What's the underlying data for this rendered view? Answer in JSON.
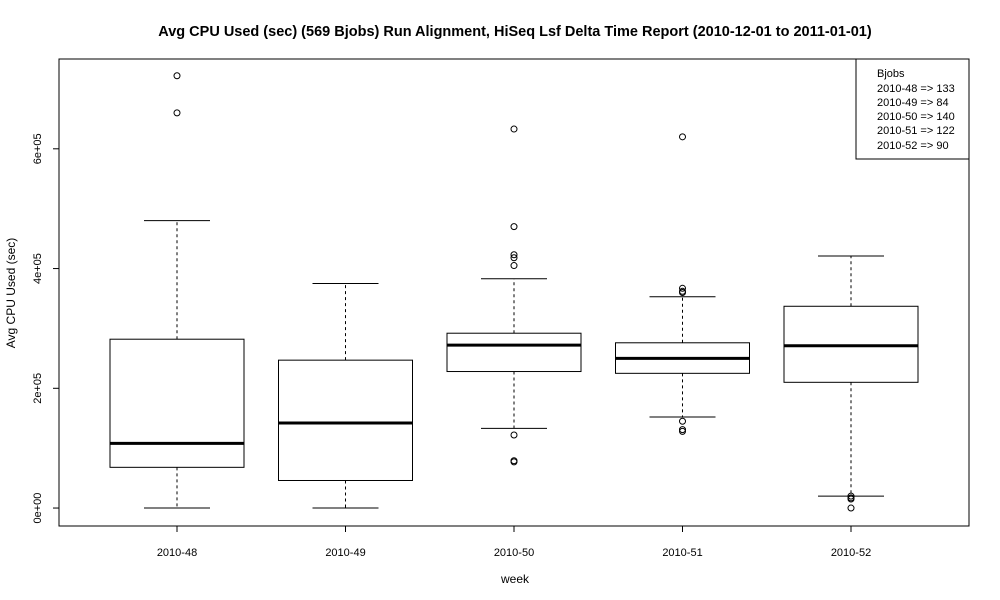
{
  "chart_data": {
    "type": "boxplot",
    "title": "Avg CPU Used (sec) (569 Bjobs) Run Alignment, HiSeq Lsf Delta Time Report (2010-12-01 to 2011-01-01)",
    "xlabel": "week",
    "ylabel": "Avg CPU Used (sec)",
    "categories": [
      "2010-48",
      "2010-49",
      "2010-50",
      "2010-51",
      "2010-52"
    ],
    "ylim": [
      -30000,
      750000
    ],
    "y_ticks": [
      {
        "value": 0,
        "label": "0e+00"
      },
      {
        "value": 200000,
        "label": "2e+05"
      },
      {
        "value": 400000,
        "label": "4e+05"
      },
      {
        "value": 600000,
        "label": "6e+05"
      }
    ],
    "grid": false,
    "boxes": [
      {
        "name": "2010-48",
        "lower_whisker": 0,
        "q1": 68000,
        "median": 108000,
        "q3": 282000,
        "upper_whisker": 480000,
        "outliers": [
          722000,
          660000
        ]
      },
      {
        "name": "2010-49",
        "lower_whisker": 0,
        "q1": 46000,
        "median": 142000,
        "q3": 247000,
        "upper_whisker": 375000,
        "outliers": []
      },
      {
        "name": "2010-50",
        "lower_whisker": 133000,
        "q1": 228000,
        "median": 272000,
        "q3": 292000,
        "upper_whisker": 383000,
        "outliers": [
          633000,
          470000,
          423000,
          418000,
          405000,
          122000,
          79000,
          77000
        ]
      },
      {
        "name": "2010-51",
        "lower_whisker": 152000,
        "q1": 225000,
        "median": 250000,
        "q3": 276000,
        "upper_whisker": 353000,
        "outliers": [
          620000,
          367000,
          362000,
          360000,
          145000,
          131000,
          128000
        ]
      },
      {
        "name": "2010-52",
        "lower_whisker": 20000,
        "q1": 210000,
        "median": 271000,
        "q3": 337000,
        "upper_whisker": 421000,
        "outliers": [
          20000,
          17000,
          15000,
          0
        ]
      }
    ],
    "legend": {
      "position": "top-right",
      "title": "Bjobs",
      "entries": [
        "2010-48 => 133",
        "2010-49 => 84",
        "2010-50 => 140",
        "2010-51 => 122",
        "2010-52 => 90"
      ]
    }
  }
}
